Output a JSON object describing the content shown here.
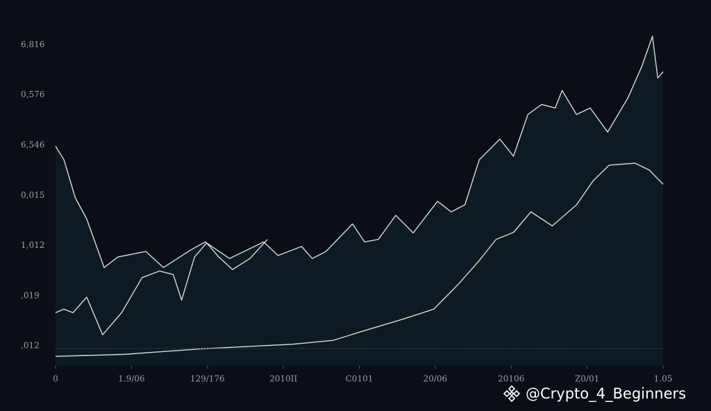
{
  "chart_data": {
    "type": "line",
    "xlim": [
      0,
      8
    ],
    "ylim": [
      -0.4,
      6.2
    ],
    "xticks": [
      {
        "value": 0,
        "label": "0"
      },
      {
        "value": 1,
        "label": "1.9/06"
      },
      {
        "value": 2,
        "label": "129/176"
      },
      {
        "value": 3,
        "label": "2010II"
      },
      {
        "value": 4,
        "label": "C0101"
      },
      {
        "value": 5,
        "label": "20/06"
      },
      {
        "value": 6,
        "label": "20106"
      },
      {
        "value": 7,
        "label": "Z0/01"
      },
      {
        "value": 8,
        "label": "1.05"
      }
    ],
    "yticks": [
      {
        "value": 0,
        "label": ",012"
      },
      {
        "value": 1,
        "label": ",019"
      },
      {
        "value": 2,
        "label": "1,012"
      },
      {
        "value": 3,
        "label": "0,015"
      },
      {
        "value": 4,
        "label": "6,546"
      },
      {
        "value": 5,
        "label": "0,576"
      },
      {
        "value": 6,
        "label": "6,816"
      }
    ],
    "grid": false,
    "area_fill": "#0e1a22",
    "series": [
      {
        "color": "#d8dadc",
        "x": [
          0,
          0.11,
          0.26,
          0.41,
          0.64,
          0.82,
          1.19,
          1.42,
          1.78,
          1.97,
          2.29,
          2.74,
          2.93,
          3.24,
          3.38,
          3.56,
          3.91,
          4.07,
          4.25,
          4.48,
          4.71,
          5.03,
          5.21,
          5.39,
          5.58,
          5.85,
          6.03,
          6.22,
          6.4,
          6.58,
          6.67,
          6.86,
          7.04,
          7.27,
          7.54,
          7.72,
          7.86,
          7.93,
          8.0
        ],
        "values": [
          3.98,
          3.71,
          2.95,
          2.53,
          1.56,
          1.77,
          1.88,
          1.56,
          1.91,
          2.07,
          1.74,
          2.07,
          1.8,
          1.98,
          1.74,
          1.88,
          2.43,
          2.07,
          2.12,
          2.6,
          2.25,
          2.88,
          2.67,
          2.81,
          3.71,
          4.12,
          3.78,
          4.61,
          4.81,
          4.74,
          5.09,
          4.61,
          4.74,
          4.26,
          4.95,
          5.57,
          6.17,
          5.34,
          5.46
        ]
      },
      {
        "color": "#d8dadc",
        "x": [
          0,
          0.11,
          0.23,
          0.41,
          0.62,
          0.87,
          1.14,
          1.37,
          1.55,
          1.66,
          1.83,
          1.99,
          2.15,
          2.33,
          2.56,
          2.79
        ],
        "values": [
          0.66,
          0.73,
          0.66,
          0.97,
          0.22,
          0.66,
          1.36,
          1.49,
          1.42,
          0.91,
          1.77,
          2.05,
          1.77,
          1.52,
          1.74,
          2.12
        ]
      },
      {
        "color": "#d8dadc",
        "x": [
          0,
          0.91,
          1.92,
          3.11,
          3.66,
          4.02,
          4.57,
          4.98,
          5.3,
          5.58,
          5.8,
          6.03,
          6.26,
          6.54,
          6.86,
          7.08,
          7.29,
          7.63,
          7.82,
          8.0
        ],
        "values": [
          -0.21,
          -0.17,
          -0.06,
          0.03,
          0.11,
          0.28,
          0.53,
          0.73,
          1.22,
          1.7,
          2.12,
          2.26,
          2.67,
          2.39,
          2.81,
          3.29,
          3.6,
          3.64,
          3.5,
          3.22
        ]
      }
    ]
  },
  "watermark": "@Crypto_4_Beginners"
}
